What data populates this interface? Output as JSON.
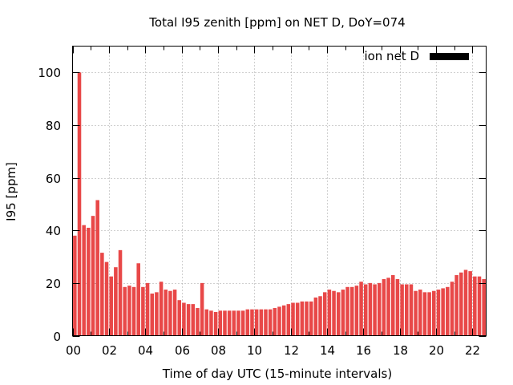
{
  "chart_data": {
    "type": "bar",
    "title": "Total I95 zenith [ppm] on NET D, DoY=074",
    "xlabel": "Time of day UTC (15-minute intervals)",
    "ylabel": "I95 [ppm]",
    "ylim": [
      0,
      110
    ],
    "yticks": [
      0,
      20,
      40,
      60,
      80,
      100
    ],
    "xticks": [
      {
        "hour": 0,
        "label": "00"
      },
      {
        "hour": 2,
        "label": "02"
      },
      {
        "hour": 4,
        "label": "04"
      },
      {
        "hour": 6,
        "label": "06"
      },
      {
        "hour": 8,
        "label": "08"
      },
      {
        "hour": 10,
        "label": "10"
      },
      {
        "hour": 12,
        "label": "12"
      },
      {
        "hour": 14,
        "label": "14"
      },
      {
        "hour": 16,
        "label": "16"
      },
      {
        "hour": 18,
        "label": "18"
      },
      {
        "hour": 20,
        "label": "20"
      },
      {
        "hour": 22,
        "label": "22"
      }
    ],
    "xlim_hours": [
      0,
      22.75
    ],
    "interval_minutes": 15,
    "grid": true,
    "legend": {
      "label": "ion net D",
      "position": "top-right",
      "color": "#000000"
    },
    "bar_color": "#e84848",
    "series": [
      {
        "name": "ion net D",
        "values": [
          38,
          100,
          42,
          41,
          45.5,
          51.5,
          31.5,
          28,
          22.5,
          26,
          32.5,
          18.5,
          19,
          18.5,
          27.5,
          18.5,
          20,
          16,
          16.5,
          20.5,
          17.5,
          17,
          17.5,
          13.5,
          12.5,
          12,
          12,
          10.5,
          20,
          10,
          9.5,
          9,
          9.5,
          9.5,
          9.5,
          9.5,
          9.5,
          9.5,
          10,
          10,
          10,
          10,
          10,
          10,
          10.5,
          11,
          11.5,
          12,
          12.5,
          12.5,
          13,
          13,
          13,
          14.5,
          15,
          16.5,
          17.5,
          17,
          16.5,
          17.5,
          18.5,
          18.5,
          19,
          20.5,
          19.5,
          20,
          19.5,
          20,
          21.5,
          22,
          23,
          21.5,
          19.5,
          19.5,
          19.5,
          17,
          17.5,
          16.5,
          16.5,
          17,
          17.5,
          18,
          18.5,
          20.5,
          23,
          24,
          25,
          24.5,
          22.5,
          22.5,
          21.5
        ]
      }
    ]
  }
}
